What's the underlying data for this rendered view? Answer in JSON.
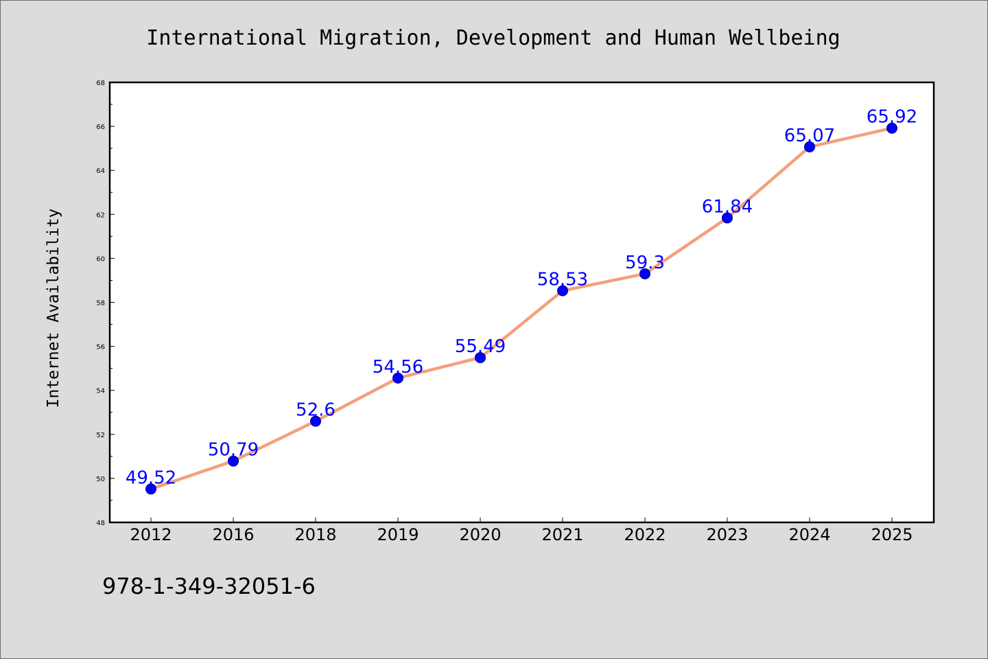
{
  "chart_data": {
    "type": "line",
    "title": "International Migration, Development and Human Wellbeing",
    "xlabel": "",
    "ylabel": "Internet Availability",
    "categories": [
      "2012",
      "2016",
      "2018",
      "2019",
      "2020",
      "2021",
      "2022",
      "2023",
      "2024",
      "2025"
    ],
    "series": [
      {
        "values": [
          49.52,
          50.79,
          52.6,
          54.56,
          55.49,
          58.53,
          59.3,
          61.84,
          65.07,
          65.92
        ],
        "data_labels": [
          "49.52",
          "50.79",
          "52.6",
          "54.56",
          "55.49",
          "58.53",
          "59.3",
          "61.84",
          "65.07",
          "65.92"
        ]
      }
    ],
    "ylim": [
      48,
      68
    ],
    "yticks": [
      "48",
      "50",
      "52",
      "54",
      "56",
      "58",
      "60",
      "62",
      "64",
      "66",
      "68"
    ],
    "grid": false,
    "legend": "none",
    "colors": {
      "line": "#f4a07c",
      "marker": "#0000ff",
      "marker_edge": "#00008b",
      "label": "#0000ff",
      "background": "#dcdcdc",
      "plot_background": "#ffffff"
    }
  },
  "footnote": "978-1-349-32051-6"
}
